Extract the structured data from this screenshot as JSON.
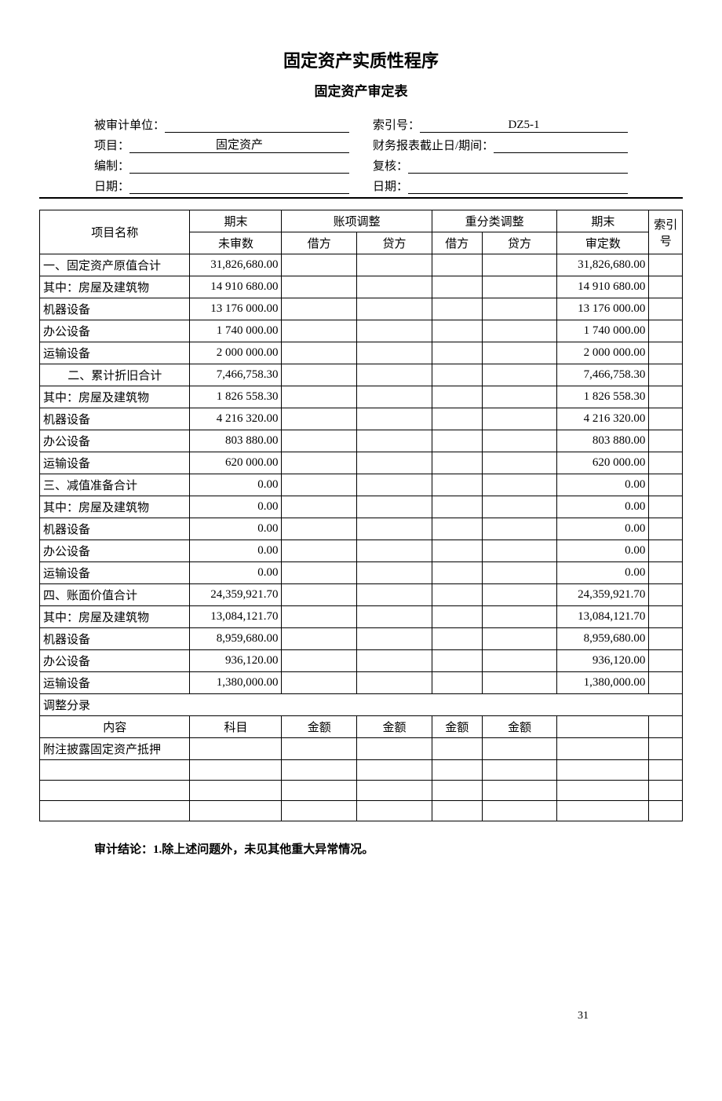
{
  "title": "固定资产实质性程序",
  "subtitle": "固定资产审定表",
  "info": {
    "left": {
      "audited_unit_label": "被审计单位：",
      "audited_unit_value": "",
      "project_label": "项目：",
      "project_value": "固定资产",
      "prepared_label": "编制：",
      "prepared_value": "",
      "date_label": "日期：",
      "date_value": ""
    },
    "right": {
      "index_label": "索引号：",
      "index_value": "DZ5-1",
      "period_label": "财务报表截止日/期间：",
      "period_value": "",
      "review_label": "复核：",
      "review_value": "",
      "date_label": "日期：",
      "date_value": ""
    }
  },
  "table": {
    "headers": {
      "name": "项目名称",
      "unaudited": "期末",
      "unaudited2": "未审数",
      "adj": "账项调整",
      "debit": "借方",
      "credit": "贷方",
      "reclass": "重分类调整",
      "audited": "期末",
      "audited2": "审定数",
      "index": "索引号"
    },
    "rows": [
      {
        "name": "一、固定资产原值合计",
        "indent": 0,
        "un": "31,826,680.00",
        "au": "31,826,680.00"
      },
      {
        "name": "其中：房屋及建筑物",
        "indent": 1,
        "un": "14 910 680.00",
        "au": "14 910 680.00"
      },
      {
        "name": "机器设备",
        "indent": 2,
        "un": "13 176 000.00",
        "au": "13 176 000.00"
      },
      {
        "name": "办公设备",
        "indent": 2,
        "un": "1 740 000.00",
        "au": "1 740 000.00"
      },
      {
        "name": "运输设备",
        "indent": 2,
        "un": "2 000 000.00",
        "au": "2 000 000.00"
      },
      {
        "name": "二、累计折旧合计",
        "indent": 0,
        "un": "7,466,758.30",
        "au": "7,466,758.30",
        "center": true
      },
      {
        "name": "其中：房屋及建筑物",
        "indent": 1,
        "un": "1 826 558.30",
        "au": "1 826 558.30"
      },
      {
        "name": "机器设备",
        "indent": 2,
        "un": "4 216 320.00",
        "au": "4 216 320.00"
      },
      {
        "name": "办公设备",
        "indent": 2,
        "un": "803 880.00",
        "au": "803 880.00"
      },
      {
        "name": "运输设备",
        "indent": 2,
        "un": "620 000.00",
        "au": "620 000.00"
      },
      {
        "name": "三、减值准备合计",
        "indent": 0,
        "un": "0.00",
        "au": "0.00"
      },
      {
        "name": "其中：房屋及建筑物",
        "indent": 1,
        "un": "0.00",
        "au": "0.00"
      },
      {
        "name": "机器设备",
        "indent": 2,
        "un": "0.00",
        "au": "0.00"
      },
      {
        "name": "办公设备",
        "indent": 2,
        "un": "0.00",
        "au": "0.00"
      },
      {
        "name": "运输设备",
        "indent": 2,
        "un": "0.00",
        "au": "0.00"
      },
      {
        "name": "四、账面价值合计",
        "indent": 0,
        "un": "24,359,921.70",
        "au": "24,359,921.70"
      },
      {
        "name": "其中：房屋及建筑物",
        "indent": 1,
        "un": "13,084,121.70",
        "au": "13,084,121.70"
      },
      {
        "name": "机器设备",
        "indent": 2,
        "un": "8,959,680.00",
        "au": "8,959,680.00"
      },
      {
        "name": "办公设备",
        "indent": 2,
        "un": "936,120.00",
        "au": "936,120.00"
      },
      {
        "name": "运输设备",
        "indent": 2,
        "un": "1,380,000.00",
        "au": "1,380,000.00"
      }
    ],
    "adj_section_label": "调整分录",
    "adj_headers": {
      "content": "内容",
      "subject": "科目",
      "amount": "金额"
    },
    "adj_rows": [
      {
        "content": "附注披露固定资产抵押"
      },
      {
        "content": ""
      },
      {
        "content": ""
      },
      {
        "content": ""
      }
    ]
  },
  "conclusion_label": "审计结论：1.",
  "conclusion_text": "除上述问题外，未见其他重大异常情况。",
  "page_number": "31"
}
